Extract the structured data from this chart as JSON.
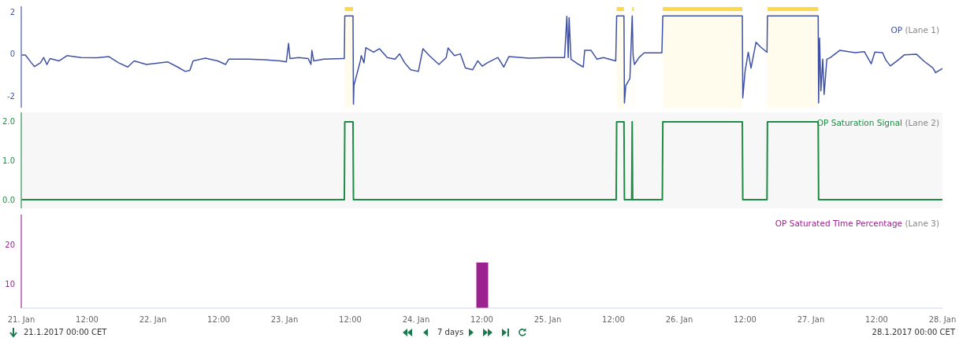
{
  "chart_data": [
    {
      "type": "line",
      "tick_labels": "y",
      "xlim": [
        "2017-01-21",
        "2017-01-28"
      ],
      "ylim": [
        -2.55,
        2.26
      ],
      "yticks": [
        2,
        0,
        -2
      ],
      "bands": [
        {
          "axis": "x",
          "from": "2017-01-23T11:00",
          "to": "2017-01-23T12:30",
          "color": "#fcd84e"
        },
        {
          "axis": "x",
          "from": "2017-01-25T12:35",
          "to": "2017-01-25T13:55",
          "color": "#fcd84e"
        },
        {
          "axis": "x",
          "from": "2017-01-25T15:25",
          "to": "2017-01-25T15:35",
          "color": "#fcd84e"
        },
        {
          "axis": "x",
          "from": "2017-01-25T21:00",
          "to": "2017-01-26T11:30",
          "color": "#fcd84e"
        },
        {
          "axis": "x",
          "from": "2017-01-26T16:05",
          "to": "2017-01-27T01:20",
          "color": "#fcd84e"
        }
      ],
      "series": [
        {
          "name": "OP (Lane 1)",
          "color": "#3f51a3",
          "x": [
            "2017-01-21T00:00",
            "2017-01-21T00:45",
            "2017-01-21T01:50",
            "2017-01-21T02:25",
            "2017-01-21T03:30",
            "2017-01-21T04:05",
            "2017-01-21T04:40",
            "2017-01-21T05:15",
            "2017-01-21T06:55",
            "2017-01-21T08:20",
            "2017-01-21T10:55",
            "2017-01-21T13:45",
            "2017-01-21T16:00",
            "2017-01-21T17:45",
            "2017-01-21T19:25",
            "2017-01-21T20:35",
            "2017-01-21T22:50",
            "2017-01-22T02:45",
            "2017-01-22T04:30",
            "2017-01-22T05:55",
            "2017-01-22T06:45",
            "2017-01-22T07:20",
            "2017-01-22T09:35",
            "2017-01-22T11:50",
            "2017-01-22T13:15",
            "2017-01-22T13:50",
            "2017-01-22T17:30",
            "2017-01-22T20:20",
            "2017-01-22T23:15",
            "2017-01-23T00:20",
            "2017-01-23T00:45",
            "2017-01-23T01:00",
            "2017-01-23T02:35",
            "2017-01-23T04:20",
            "2017-01-23T04:50",
            "2017-01-23T05:00",
            "2017-01-23T05:20",
            "2017-01-23T07:10",
            "2017-01-23T10:35",
            "2017-01-23T10:55",
            "2017-01-23T11:00",
            "2017-01-23T12:30",
            "2017-01-23T12:35",
            "2017-01-23T12:40",
            "2017-01-23T13:50",
            "2017-01-23T14:00",
            "2017-01-23T14:30",
            "2017-01-23T14:50",
            "2017-01-23T16:15",
            "2017-01-23T17:20",
            "2017-01-23T18:45",
            "2017-01-23T20:10",
            "2017-01-23T21:00",
            "2017-01-23T21:55",
            "2017-01-23T23:00",
            "2017-01-24T00:25",
            "2017-01-24T01:15",
            "2017-01-24T02:25",
            "2017-01-24T04:10",
            "2017-01-24T05:30",
            "2017-01-24T05:50",
            "2017-01-24T07:00",
            "2017-01-24T08:05",
            "2017-01-24T09:00",
            "2017-01-24T10:20",
            "2017-01-24T11:15",
            "2017-01-24T12:05",
            "2017-01-24T13:00",
            "2017-01-24T14:55",
            "2017-01-24T16:00",
            "2017-01-24T16:55",
            "2017-01-24T20:35",
            "2017-01-25T00:00",
            "2017-01-25T03:05",
            "2017-01-25T03:30",
            "2017-01-25T03:45",
            "2017-01-25T03:55",
            "2017-01-25T04:15",
            "2017-01-25T05:40",
            "2017-01-25T06:30",
            "2017-01-25T06:45",
            "2017-01-25T07:55",
            "2017-01-25T09:00",
            "2017-01-25T10:10",
            "2017-01-25T12:25",
            "2017-01-25T12:35",
            "2017-01-25T13:55",
            "2017-01-25T14:00",
            "2017-01-25T14:15",
            "2017-01-25T15:00",
            "2017-01-25T15:25",
            "2017-01-25T15:35",
            "2017-01-25T15:50",
            "2017-01-25T16:40",
            "2017-01-25T17:35",
            "2017-01-25T20:50",
            "2017-01-25T21:00",
            "2017-01-26T11:30",
            "2017-01-26T11:35",
            "2017-01-26T12:00",
            "2017-01-26T12:35",
            "2017-01-26T13:05",
            "2017-01-26T14:00",
            "2017-01-26T14:50",
            "2017-01-26T16:00",
            "2017-01-26T16:05",
            "2017-01-27T01:20",
            "2017-01-27T01:25",
            "2017-01-27T01:35",
            "2017-01-27T01:50",
            "2017-01-27T02:10",
            "2017-01-27T02:25",
            "2017-01-27T02:55",
            "2017-01-27T03:35",
            "2017-01-27T05:15",
            "2017-01-27T08:05",
            "2017-01-27T09:45",
            "2017-01-27T11:00",
            "2017-01-27T11:40",
            "2017-01-27T13:05",
            "2017-01-27T13:40",
            "2017-01-27T14:30",
            "2017-01-27T15:55",
            "2017-01-27T17:05",
            "2017-01-27T19:15",
            "2017-01-27T20:40",
            "2017-01-27T22:15",
            "2017-01-27T22:45",
            "2017-01-28T00:00"
          ],
          "values": [
            -0.05,
            -0.05,
            -0.42,
            -0.6,
            -0.42,
            -0.17,
            -0.5,
            -0.22,
            -0.33,
            -0.08,
            -0.17,
            -0.18,
            -0.13,
            -0.42,
            -0.62,
            -0.33,
            -0.5,
            -0.38,
            -0.62,
            -0.83,
            -0.78,
            -0.33,
            -0.2,
            -0.33,
            -0.5,
            -0.25,
            -0.25,
            -0.28,
            -0.33,
            -0.38,
            0.5,
            -0.22,
            -0.17,
            -0.22,
            -0.5,
            0.17,
            -0.33,
            -0.25,
            -0.22,
            -0.22,
            1.8,
            1.8,
            -2.38,
            -1.5,
            -0.33,
            -0.08,
            -0.42,
            0.3,
            0.08,
            0.25,
            -0.17,
            -0.25,
            0,
            -0.42,
            -0.75,
            -0.83,
            0.25,
            -0.08,
            -0.5,
            -0.17,
            0.28,
            -0.08,
            0,
            -0.67,
            -0.75,
            -0.33,
            -0.58,
            -0.42,
            -0.17,
            -0.62,
            -0.13,
            -0.2,
            -0.17,
            -0.17,
            1.78,
            -0.17,
            1.72,
            -0.25,
            -0.5,
            -0.62,
            0.17,
            0.17,
            -0.25,
            -0.17,
            -0.33,
            1.8,
            1.8,
            -2.33,
            -1.5,
            -1.17,
            1.8,
            -0.08,
            -0.5,
            -0.17,
            0.05,
            0.05,
            1.8,
            1.8,
            -2.08,
            -0.83,
            0.08,
            -0.67,
            0.55,
            0.33,
            0.08,
            1.8,
            1.8,
            -2.33,
            0.75,
            -1.75,
            -0.25,
            -1.92,
            -0.25,
            -0.17,
            0.17,
            0.06,
            0.11,
            -0.47,
            0.09,
            0.06,
            -0.29,
            -0.57,
            -0.29,
            -0.04,
            -0.01,
            -0.35,
            -0.66,
            -0.89,
            -0.69
          ]
        }
      ]
    },
    {
      "type": "line",
      "tick_labels": "y",
      "xlim": [
        "2017-01-21",
        "2017-01-28"
      ],
      "ylim": [
        -0.22,
        2.24
      ],
      "yticks": [
        {
          "value": 0,
          "label": "0.0"
        },
        {
          "value": 1,
          "label": "1.0"
        },
        {
          "value": 2,
          "label": "2.0"
        }
      ],
      "series": [
        {
          "name": "OP Saturation Signal (Lane 2)",
          "color": "#1e8c45",
          "x": [
            "2017-01-21T00:00",
            "2017-01-23T10:55",
            "2017-01-23T11:00",
            "2017-01-23T12:30",
            "2017-01-23T12:35",
            "2017-01-25T12:30",
            "2017-01-25T12:35",
            "2017-01-25T13:55",
            "2017-01-25T14:00",
            "2017-01-25T15:20",
            "2017-01-25T15:25",
            "2017-01-25T15:30",
            "2017-01-25T20:55",
            "2017-01-25T21:00",
            "2017-01-26T11:30",
            "2017-01-26T11:35",
            "2017-01-26T16:00",
            "2017-01-26T16:05",
            "2017-01-27T01:20",
            "2017-01-27T01:25",
            "2017-01-28T00:00"
          ],
          "values": [
            0,
            0,
            2,
            2,
            0,
            0,
            2,
            2,
            0,
            0,
            2,
            0,
            0,
            2,
            2,
            0,
            0,
            2,
            2,
            0,
            0
          ]
        }
      ]
    },
    {
      "type": "bar",
      "xlim": [
        "2017-01-21",
        "2017-01-28"
      ],
      "ylim": [
        3.8,
        27.6
      ],
      "yticks": [
        10,
        20
      ],
      "xticks": [
        {
          "value": "2017-01-21",
          "label": "21. Jan"
        },
        {
          "value": "2017-01-21T12:00",
          "label": "12:00"
        },
        {
          "value": "2017-01-22",
          "label": "22. Jan"
        },
        {
          "value": "2017-01-22T12:00",
          "label": "12:00"
        },
        {
          "value": "2017-01-23",
          "label": "23. Jan"
        },
        {
          "value": "2017-01-23T12:00",
          "label": "12:00"
        },
        {
          "value": "2017-01-24",
          "label": "24. Jan"
        },
        {
          "value": "2017-01-24T12:00",
          "label": "12:00"
        },
        {
          "value": "2017-01-25",
          "label": "25. Jan"
        },
        {
          "value": "2017-01-25T12:00",
          "label": "12:00"
        },
        {
          "value": "2017-01-26",
          "label": "26. Jan"
        },
        {
          "value": "2017-01-26T12:00",
          "label": "12:00"
        },
        {
          "value": "2017-01-27",
          "label": "27. Jan"
        },
        {
          "value": "2017-01-27T12:00",
          "label": "12:00"
        },
        {
          "value": "2017-01-28",
          "label": "28. Jan"
        }
      ],
      "series": [
        {
          "name": "OP Saturated Time Percentage (Lane 3)",
          "color": "#9c2290",
          "x": [
            "2017-01-24T12:00"
          ],
          "values": [
            15.4
          ]
        }
      ],
      "annotations": [
        "21.1.2017 00:00 CET",
        "7 days",
        "28.1.2017 00:00 CET"
      ]
    }
  ]
}
